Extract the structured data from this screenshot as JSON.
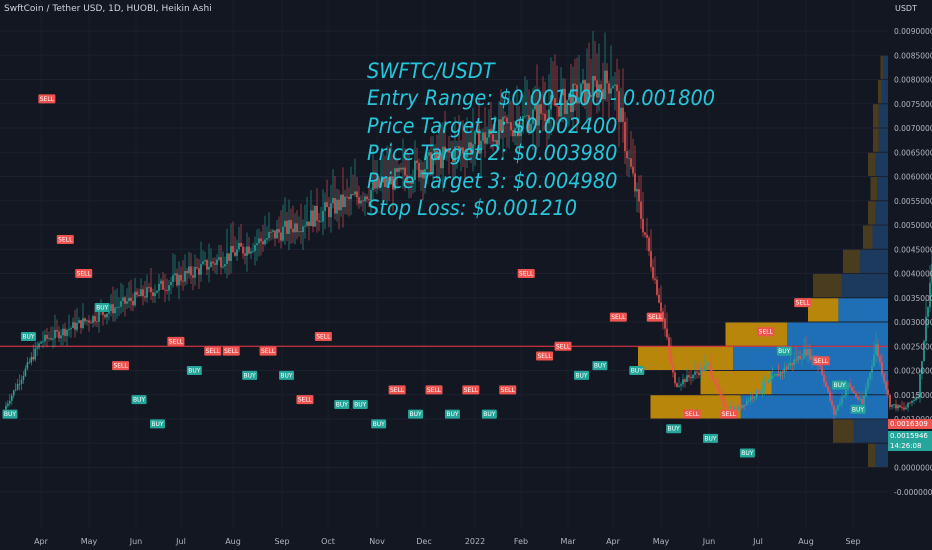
{
  "header": {
    "title": "SwftCoin / Tether USD, 1D, HUOBI, Heikin Ashi"
  },
  "annotation": {
    "lines": [
      "SWFTC/USDT",
      "Entry Range: $0.001500 - 0.001800",
      "Price Target 1: $0.002400",
      "Price Target 2: $0.003980",
      "Price Target 3: $0.004980",
      "Stop Loss: $0.001210"
    ]
  },
  "price_axis": {
    "unit": "USDT",
    "ticks": [
      "0.0090000",
      "0.0085000",
      "0.0080000",
      "0.0075000",
      "0.0070000",
      "0.0065000",
      "0.0060000",
      "0.0055000",
      "0.0050000",
      "0.0045000",
      "0.0040000",
      "0.0035000",
      "0.0030000",
      "0.0025000",
      "0.0020000",
      "0.0015000",
      "0.0010000",
      "0.0005000",
      "0.0000000",
      "-0.0000000"
    ]
  },
  "time_axis": {
    "ticks": [
      "Apr",
      "May",
      "Jun",
      "Jul",
      "Aug",
      "Sep",
      "Oct",
      "Nov",
      "Dec",
      "2022",
      "Feb",
      "Mar",
      "Apr",
      "May",
      "Jun",
      "Jul",
      "Aug",
      "Sep"
    ]
  },
  "price_tags": {
    "red": "0.0016309",
    "green": "0.0015946",
    "countdown": "14:26:08"
  },
  "colors": {
    "background": "#131722",
    "up": "#26a69a",
    "down": "#ef5350",
    "horizontal_line": "#f23645",
    "annotation": "#26c6da",
    "vp_blue": "#1e6fb5",
    "vp_gold": "#b8860b",
    "vp_dark_blue": "#1c3a5e",
    "vp_dark_gold": "#4a3c1f"
  },
  "chart_data": {
    "type": "candlestick",
    "symbol": "SwftCoin / Tether USD",
    "interval": "1D",
    "exchange": "HUOBI",
    "style": "Heikin Ashi",
    "ylim": [
      0,
      0.009
    ],
    "horizontal_line": 0.0025,
    "price_path": [
      [
        "Mar",
        0.0012
      ],
      [
        "Apr",
        0.0026
      ],
      [
        "Apr",
        0.008
      ],
      [
        "May",
        0.0065
      ],
      [
        "May",
        0.0033
      ],
      [
        "Jun",
        0.0017
      ],
      [
        "Jun",
        0.0021
      ],
      [
        "Jul",
        0.0013
      ],
      [
        "Aug",
        0.0012
      ],
      [
        "Aug",
        0.0024
      ],
      [
        "Sep",
        0.0021
      ],
      [
        "Oct",
        0.0011
      ],
      [
        "Oct",
        0.0017
      ],
      [
        "Nov",
        0.0013
      ],
      [
        "Nov",
        0.0025
      ],
      [
        "Dec",
        0.0013
      ],
      [
        "2022",
        0.0012
      ],
      [
        "Feb",
        0.0015
      ],
      [
        "Feb",
        0.0042
      ],
      [
        "Mar",
        0.0021
      ],
      [
        "Apr",
        0.0025
      ],
      [
        "Apr",
        0.003
      ],
      [
        "May",
        0.0009
      ],
      [
        "Jun",
        0.0011
      ],
      [
        "Jul",
        0.0008
      ],
      [
        "Jul",
        0.003
      ],
      [
        "Aug",
        0.002
      ],
      [
        "Sep",
        0.0016
      ]
    ],
    "signals": [
      {
        "label": "BUY",
        "price": 0.0011
      },
      {
        "label": "BUY",
        "price": 0.0027
      },
      {
        "label": "SELL",
        "price": 0.0076
      },
      {
        "label": "SELL",
        "price": 0.0047
      },
      {
        "label": "SELL",
        "price": 0.004
      },
      {
        "label": "BUY",
        "price": 0.0033
      },
      {
        "label": "SELL",
        "price": 0.0021
      },
      {
        "label": "BUY",
        "price": 0.0014
      },
      {
        "label": "BUY",
        "price": 0.0009
      },
      {
        "label": "SELL",
        "price": 0.0026
      },
      {
        "label": "BUY",
        "price": 0.002
      },
      {
        "label": "SELL",
        "price": 0.0024
      },
      {
        "label": "SELL",
        "price": 0.0024
      },
      {
        "label": "BUY",
        "price": 0.0019
      },
      {
        "label": "SELL",
        "price": 0.0024
      },
      {
        "label": "BUY",
        "price": 0.0019
      },
      {
        "label": "SELL",
        "price": 0.0014
      },
      {
        "label": "SELL",
        "price": 0.0027
      },
      {
        "label": "BUY",
        "price": 0.0013
      },
      {
        "label": "BUY",
        "price": 0.0013
      },
      {
        "label": "BUY",
        "price": 0.0009
      },
      {
        "label": "SELL",
        "price": 0.0016
      },
      {
        "label": "BUY",
        "price": 0.0011
      },
      {
        "label": "SELL",
        "price": 0.0016
      },
      {
        "label": "BUY",
        "price": 0.0011
      },
      {
        "label": "SELL",
        "price": 0.0016
      },
      {
        "label": "BUY",
        "price": 0.0011
      },
      {
        "label": "SELL",
        "price": 0.0016
      },
      {
        "label": "SELL",
        "price": 0.004
      },
      {
        "label": "SELL",
        "price": 0.0023
      },
      {
        "label": "SELL",
        "price": 0.0025
      },
      {
        "label": "BUY",
        "price": 0.0019
      },
      {
        "label": "BUY",
        "price": 0.0021
      },
      {
        "label": "SELL",
        "price": 0.0031
      },
      {
        "label": "BUY",
        "price": 0.002
      },
      {
        "label": "SELL",
        "price": 0.0031
      },
      {
        "label": "BUY",
        "price": 0.0008
      },
      {
        "label": "SELL",
        "price": 0.0011
      },
      {
        "label": "BUY",
        "price": 0.0006
      },
      {
        "label": "SELL",
        "price": 0.0011
      },
      {
        "label": "BUY",
        "price": 0.0003
      },
      {
        "label": "SELL",
        "price": 0.0028
      },
      {
        "label": "BUY",
        "price": 0.0024
      },
      {
        "label": "SELL",
        "price": 0.0034
      },
      {
        "label": "SELL",
        "price": 0.0022
      },
      {
        "label": "BUY",
        "price": 0.0017
      },
      {
        "label": "BUY",
        "price": 0.0012
      }
    ],
    "volume_profile": [
      {
        "price": 0.00025,
        "share": 0.08,
        "kind": "dark"
      },
      {
        "price": 0.00075,
        "share": 0.22,
        "kind": "dark"
      },
      {
        "price": 0.00125,
        "share": 0.95,
        "kind": "bright"
      },
      {
        "price": 0.00175,
        "share": 0.75,
        "kind": "bright"
      },
      {
        "price": 0.00225,
        "share": 1.0,
        "kind": "bright"
      },
      {
        "price": 0.00275,
        "share": 0.65,
        "kind": "bright"
      },
      {
        "price": 0.00325,
        "share": 0.32,
        "kind": "bright"
      },
      {
        "price": 0.00375,
        "share": 0.3,
        "kind": "dark"
      },
      {
        "price": 0.00425,
        "share": 0.18,
        "kind": "dark"
      },
      {
        "price": 0.00475,
        "share": 0.1,
        "kind": "dark"
      },
      {
        "price": 0.00525,
        "share": 0.08,
        "kind": "dark"
      },
      {
        "price": 0.00575,
        "share": 0.07,
        "kind": "dark"
      },
      {
        "price": 0.00625,
        "share": 0.08,
        "kind": "dark"
      },
      {
        "price": 0.00675,
        "share": 0.06,
        "kind": "dark"
      },
      {
        "price": 0.00725,
        "share": 0.06,
        "kind": "dark"
      },
      {
        "price": 0.00775,
        "share": 0.04,
        "kind": "dark"
      },
      {
        "price": 0.00825,
        "share": 0.03,
        "kind": "dark"
      }
    ]
  }
}
